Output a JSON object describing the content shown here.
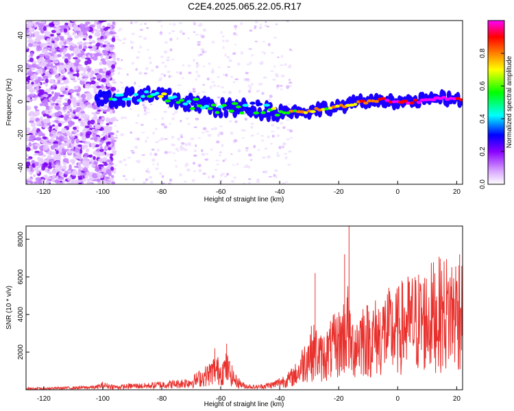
{
  "title": "C2E4.2025.065.22.05.R17",
  "chart_data": [
    {
      "type": "heatmap",
      "title": "C2E4.2025.065.22.05.R17",
      "xlabel": "Height of straight line (km)",
      "ylabel": "Frequency (Hz)",
      "xlim": [
        -126,
        22
      ],
      "ylim": [
        -50,
        49
      ],
      "x_ticks": [
        -120,
        -100,
        -80,
        -60,
        -40,
        -20,
        0,
        20
      ],
      "y_ticks": [
        -40,
        -20,
        0,
        20,
        40
      ],
      "grid": false,
      "colorbar": {
        "label": "Normalized spectral amplitude",
        "range": [
          0,
          1
        ],
        "ticks": [
          0.0,
          0.2,
          0.4,
          0.6,
          0.8
        ],
        "colors": [
          "#ffffff",
          "#d9a6ff",
          "#8a00ff",
          "#0000ff",
          "#00ffff",
          "#00ff00",
          "#ffff00",
          "#ff8000",
          "#ff0000",
          "#ff00ff"
        ]
      },
      "ridge": {
        "x": [
          -102,
          -95,
          -90,
          -85,
          -80,
          -75,
          -70,
          -65,
          -60,
          -55,
          -50,
          -45,
          -40,
          -35,
          -30,
          -25,
          -20,
          -15,
          -10,
          -5,
          0,
          5,
          10,
          15,
          20,
          22
        ],
        "frequency": [
          2,
          2,
          3,
          3,
          3,
          1,
          -1,
          -2,
          -4,
          -4,
          -4,
          -5,
          -6,
          -6,
          -6,
          -4,
          -3,
          -1,
          0,
          1,
          0,
          0,
          1,
          2,
          1,
          1
        ],
        "amplitude": [
          0.4,
          0.45,
          0.45,
          0.5,
          0.55,
          0.5,
          0.5,
          0.5,
          0.5,
          0.45,
          0.45,
          0.5,
          0.55,
          0.7,
          0.7,
          0.65,
          0.75,
          0.7,
          0.8,
          0.9,
          1.0,
          0.95,
          0.95,
          1.0,
          0.9,
          0.8
        ]
      }
    },
    {
      "type": "line",
      "xlabel": "Height of straight line (km)",
      "ylabel": "SNR (10 * v/v)",
      "xlim": [
        -126,
        22
      ],
      "ylim": [
        0,
        8700
      ],
      "x_ticks": [
        -120,
        -100,
        -80,
        -60,
        -40,
        -20,
        0,
        20
      ],
      "y_ticks": [
        2000,
        4000,
        6000,
        8000
      ],
      "grid": false,
      "color": "#e8312d",
      "x": [
        -126,
        -120,
        -110,
        -102,
        -100,
        -95,
        -90,
        -85,
        -80,
        -75,
        -70,
        -67,
        -64,
        -62,
        -60,
        -58,
        -55,
        -52,
        -48,
        -45,
        -42,
        -40,
        -37,
        -34,
        -32,
        -30,
        -28,
        -26,
        -24,
        -22,
        -20,
        -18,
        -17,
        -16,
        -14,
        -12,
        -10,
        -8,
        -6,
        -4,
        -2,
        0,
        2,
        4,
        6,
        8,
        10,
        12,
        14,
        16,
        18,
        20,
        22
      ],
      "y": [
        100,
        100,
        150,
        200,
        350,
        200,
        300,
        300,
        400,
        450,
        600,
        900,
        1200,
        1600,
        1400,
        1700,
        700,
        300,
        200,
        300,
        400,
        600,
        800,
        1300,
        2100,
        2800,
        3000,
        2500,
        2800,
        3300,
        3600,
        4300,
        5000,
        3300,
        3600,
        4200,
        3900,
        4100,
        4200,
        4600,
        4500,
        4600,
        5000,
        5200,
        5300,
        5400,
        5500,
        5800,
        5900,
        6000,
        6100,
        6200,
        6300
      ],
      "peaks": [
        {
          "x": -16.5,
          "y": 8700
        },
        {
          "x": -18,
          "y": 7200
        },
        {
          "x": -28,
          "y": 6200
        },
        {
          "x": -58,
          "y": 2450
        },
        {
          "x": -62,
          "y": 2200
        },
        {
          "x": 21,
          "y": 7200
        }
      ]
    }
  ]
}
